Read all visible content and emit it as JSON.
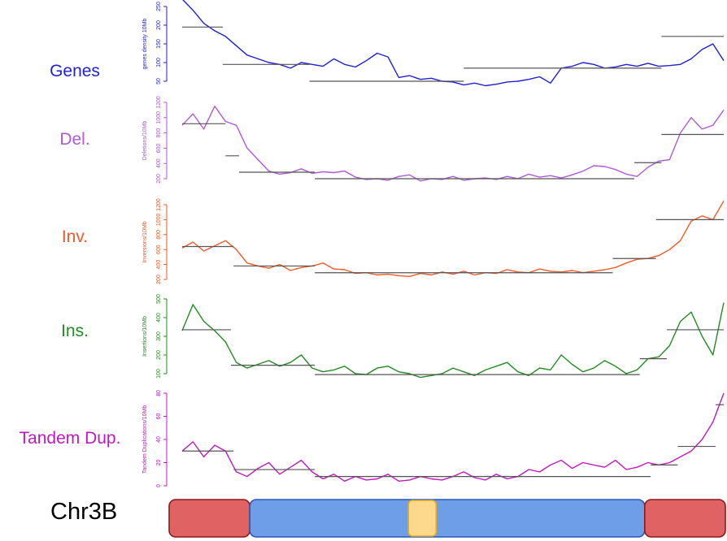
{
  "chromosome": {
    "label": "Chr3B",
    "segments": [
      {
        "name": "distal-left",
        "start": 0.0,
        "end": 0.145,
        "fill": "#e06262",
        "stroke": "#8b1a1a"
      },
      {
        "name": "interstitial",
        "start": 0.145,
        "end": 0.855,
        "fill": "#6f9ee8",
        "stroke": "#2a56b8"
      },
      {
        "name": "centromere",
        "start": 0.43,
        "end": 0.48,
        "fill": "#fcd98c",
        "stroke": "#e8a820"
      },
      {
        "name": "distal-right",
        "start": 0.855,
        "end": 1.0,
        "fill": "#e06262",
        "stroke": "#8b1a1a"
      }
    ]
  },
  "chart_data": [
    {
      "type": "line",
      "track_label": "Genes",
      "ylabel": "genes density 10Mb",
      "color": "#1f1fd6",
      "ylim": [
        50,
        250
      ],
      "yticks": [
        "50",
        "100",
        "150",
        "200",
        "250"
      ],
      "x": [
        0,
        0.02,
        0.04,
        0.06,
        0.08,
        0.1,
        0.12,
        0.14,
        0.16,
        0.18,
        0.2,
        0.22,
        0.24,
        0.26,
        0.28,
        0.3,
        0.32,
        0.34,
        0.36,
        0.38,
        0.4,
        0.42,
        0.44,
        0.46,
        0.48,
        0.5,
        0.52,
        0.54,
        0.56,
        0.58,
        0.6,
        0.62,
        0.64,
        0.66,
        0.68,
        0.7,
        0.72,
        0.74,
        0.76,
        0.78,
        0.8,
        0.82,
        0.84,
        0.86,
        0.88,
        0.9,
        0.92,
        0.94,
        0.96,
        0.98,
        1.0
      ],
      "values": [
        270,
        240,
        205,
        185,
        170,
        145,
        120,
        110,
        100,
        95,
        85,
        100,
        95,
        90,
        110,
        95,
        88,
        105,
        125,
        115,
        60,
        65,
        55,
        58,
        50,
        48,
        40,
        45,
        38,
        42,
        48,
        50,
        55,
        62,
        45,
        85,
        90,
        100,
        95,
        85,
        88,
        95,
        90,
        98,
        90,
        92,
        95,
        110,
        135,
        150,
        105
      ],
      "segments": [
        {
          "x0": 0.0,
          "x1": 0.075,
          "y": 195
        },
        {
          "x0": 0.075,
          "x1": 0.235,
          "y": 95
        },
        {
          "x0": 0.235,
          "x1": 0.52,
          "y": 50
        },
        {
          "x0": 0.52,
          "x1": 0.885,
          "y": 85
        },
        {
          "x0": 0.885,
          "x1": 1.0,
          "y": 170
        }
      ]
    },
    {
      "type": "line",
      "track_label": "Del.",
      "ylabel": "Deletions/10Mb",
      "color": "#b05ad8",
      "ylim": [
        200,
        1200
      ],
      "yticks": [
        "200",
        "400",
        "600",
        "800",
        "1000",
        "1200"
      ],
      "x": [
        0,
        0.02,
        0.04,
        0.06,
        0.08,
        0.1,
        0.12,
        0.14,
        0.16,
        0.18,
        0.2,
        0.22,
        0.24,
        0.26,
        0.28,
        0.3,
        0.32,
        0.34,
        0.36,
        0.38,
        0.4,
        0.42,
        0.44,
        0.46,
        0.48,
        0.5,
        0.52,
        0.54,
        0.56,
        0.58,
        0.6,
        0.62,
        0.64,
        0.66,
        0.68,
        0.7,
        0.72,
        0.74,
        0.76,
        0.78,
        0.8,
        0.82,
        0.84,
        0.86,
        0.88,
        0.9,
        0.92,
        0.94,
        0.96,
        0.98,
        1.0
      ],
      "values": [
        900,
        1050,
        850,
        1150,
        950,
        900,
        600,
        450,
        300,
        260,
        280,
        330,
        270,
        290,
        280,
        300,
        220,
        190,
        200,
        180,
        230,
        250,
        170,
        200,
        190,
        230,
        180,
        200,
        210,
        190,
        230,
        200,
        260,
        220,
        240,
        210,
        250,
        300,
        370,
        360,
        320,
        260,
        230,
        350,
        430,
        450,
        800,
        1000,
        850,
        900,
        1100
      ],
      "segments": [
        {
          "x0": 0.0,
          "x1": 0.08,
          "y": 920
        },
        {
          "x0": 0.08,
          "x1": 0.105,
          "y": 500
        },
        {
          "x0": 0.105,
          "x1": 0.245,
          "y": 285
        },
        {
          "x0": 0.245,
          "x1": 0.835,
          "y": 200
        },
        {
          "x0": 0.835,
          "x1": 0.885,
          "y": 410
        },
        {
          "x0": 0.885,
          "x1": 1.0,
          "y": 780
        }
      ]
    },
    {
      "type": "line",
      "track_label": "Inv.",
      "ylabel": "Inversions/10Mb",
      "color": "#f05a28",
      "ylim": [
        200,
        1200
      ],
      "yticks": [
        "200",
        "400",
        "600",
        "800",
        "1000",
        "1200"
      ],
      "x": [
        0,
        0.02,
        0.04,
        0.06,
        0.08,
        0.1,
        0.12,
        0.14,
        0.16,
        0.18,
        0.2,
        0.22,
        0.24,
        0.26,
        0.28,
        0.3,
        0.32,
        0.34,
        0.36,
        0.38,
        0.4,
        0.42,
        0.44,
        0.46,
        0.48,
        0.5,
        0.52,
        0.54,
        0.56,
        0.58,
        0.6,
        0.62,
        0.64,
        0.66,
        0.68,
        0.7,
        0.72,
        0.74,
        0.76,
        0.78,
        0.8,
        0.82,
        0.84,
        0.86,
        0.88,
        0.9,
        0.92,
        0.94,
        0.96,
        0.98,
        1.0
      ],
      "values": [
        620,
        700,
        580,
        650,
        720,
        600,
        420,
        380,
        350,
        400,
        320,
        360,
        380,
        420,
        340,
        330,
        280,
        290,
        260,
        270,
        250,
        240,
        280,
        260,
        300,
        270,
        310,
        260,
        290,
        280,
        330,
        300,
        290,
        340,
        310,
        300,
        320,
        290,
        310,
        330,
        360,
        420,
        470,
        480,
        520,
        600,
        720,
        980,
        1050,
        1000,
        1250
      ],
      "segments": [
        {
          "x0": 0.0,
          "x1": 0.095,
          "y": 640
        },
        {
          "x0": 0.095,
          "x1": 0.245,
          "y": 380
        },
        {
          "x0": 0.245,
          "x1": 0.795,
          "y": 290
        },
        {
          "x0": 0.795,
          "x1": 0.875,
          "y": 480
        },
        {
          "x0": 0.875,
          "x1": 1.0,
          "y": 1000
        }
      ]
    },
    {
      "type": "line",
      "track_label": "Ins.",
      "ylabel": "Insertions/10Mb",
      "color": "#228b22",
      "ylim": [
        100,
        500
      ],
      "yticks": [
        "100",
        "200",
        "300",
        "400",
        "500"
      ],
      "x": [
        0,
        0.02,
        0.04,
        0.06,
        0.08,
        0.1,
        0.12,
        0.14,
        0.16,
        0.18,
        0.2,
        0.22,
        0.24,
        0.26,
        0.28,
        0.3,
        0.32,
        0.34,
        0.36,
        0.38,
        0.4,
        0.42,
        0.44,
        0.46,
        0.48,
        0.5,
        0.52,
        0.54,
        0.56,
        0.58,
        0.6,
        0.62,
        0.64,
        0.66,
        0.68,
        0.7,
        0.72,
        0.74,
        0.76,
        0.78,
        0.8,
        0.82,
        0.84,
        0.86,
        0.88,
        0.9,
        0.92,
        0.94,
        0.96,
        0.98,
        1.0
      ],
      "values": [
        330,
        470,
        380,
        330,
        270,
        160,
        130,
        150,
        170,
        140,
        160,
        200,
        130,
        110,
        120,
        140,
        100,
        95,
        130,
        140,
        110,
        100,
        80,
        90,
        100,
        130,
        110,
        90,
        120,
        140,
        160,
        110,
        90,
        130,
        120,
        200,
        150,
        110,
        130,
        170,
        140,
        100,
        120,
        180,
        190,
        250,
        380,
        430,
        300,
        200,
        480
      ],
      "segments": [
        {
          "x0": 0.0,
          "x1": 0.09,
          "y": 335
        },
        {
          "x0": 0.09,
          "x1": 0.245,
          "y": 145
        },
        {
          "x0": 0.245,
          "x1": 0.845,
          "y": 95
        },
        {
          "x0": 0.845,
          "x1": 0.895,
          "y": 180
        },
        {
          "x0": 0.895,
          "x1": 1.0,
          "y": 335
        }
      ]
    },
    {
      "type": "line",
      "track_label": "Tandem Dup.",
      "ylabel": "Tandem Duplications/10Mb",
      "color": "#c018c0",
      "ylim": [
        0,
        80
      ],
      "yticks": [
        "0",
        "20",
        "40",
        "60",
        "80"
      ],
      "x": [
        0,
        0.02,
        0.04,
        0.06,
        0.08,
        0.1,
        0.12,
        0.14,
        0.16,
        0.18,
        0.2,
        0.22,
        0.24,
        0.26,
        0.28,
        0.3,
        0.32,
        0.34,
        0.36,
        0.38,
        0.4,
        0.42,
        0.44,
        0.46,
        0.48,
        0.5,
        0.52,
        0.54,
        0.56,
        0.58,
        0.6,
        0.62,
        0.64,
        0.66,
        0.68,
        0.7,
        0.72,
        0.74,
        0.76,
        0.78,
        0.8,
        0.82,
        0.84,
        0.86,
        0.88,
        0.9,
        0.92,
        0.94,
        0.96,
        0.98,
        1.0
      ],
      "values": [
        30,
        38,
        25,
        35,
        30,
        12,
        8,
        15,
        20,
        10,
        16,
        22,
        12,
        6,
        10,
        4,
        8,
        5,
        6,
        10,
        4,
        5,
        8,
        6,
        5,
        8,
        12,
        7,
        5,
        10,
        6,
        8,
        14,
        12,
        18,
        22,
        15,
        20,
        18,
        16,
        22,
        14,
        16,
        20,
        18,
        20,
        25,
        30,
        40,
        55,
        80
      ],
      "segments": [
        {
          "x0": 0.0,
          "x1": 0.095,
          "y": 30
        },
        {
          "x0": 0.095,
          "x1": 0.245,
          "y": 14
        },
        {
          "x0": 0.245,
          "x1": 0.865,
          "y": 8
        },
        {
          "x0": 0.865,
          "x1": 0.915,
          "y": 18
        },
        {
          "x0": 0.915,
          "x1": 0.985,
          "y": 34
        },
        {
          "x0": 0.985,
          "x1": 1.0,
          "y": 70
        }
      ]
    }
  ]
}
